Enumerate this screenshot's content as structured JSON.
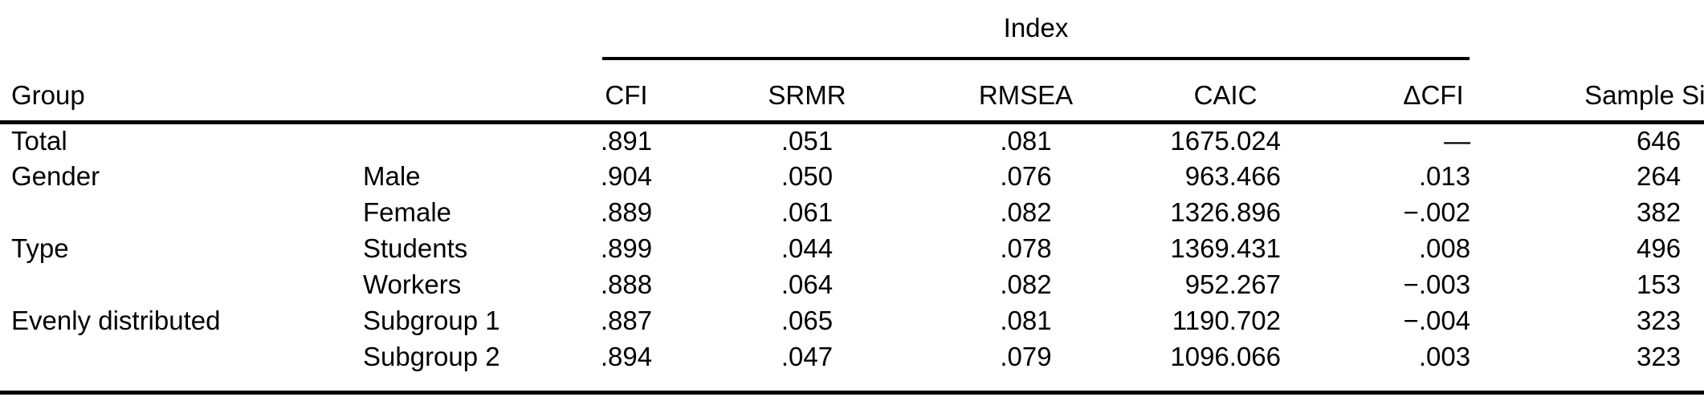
{
  "table": {
    "spanner_label": "Index",
    "columns": {
      "group": "Group",
      "subgroup": "",
      "cfi": "CFI",
      "srmr": "SRMR",
      "rmsea": "RMSEA",
      "caic": "CAIC",
      "dcfi": "ΔCFI",
      "sample": "Sample Size"
    },
    "rows": [
      {
        "group": "Total",
        "subgroup": "",
        "cfi": ".891",
        "srmr": ".051",
        "rmsea": ".081",
        "caic": "1675.024",
        "dcfi": "—",
        "sample": "646"
      },
      {
        "group": "Gender",
        "subgroup": "Male",
        "cfi": ".904",
        "srmr": ".050",
        "rmsea": ".076",
        "caic": "963.466",
        "dcfi": ".013",
        "sample": "264"
      },
      {
        "group": "",
        "subgroup": "Female",
        "cfi": ".889",
        "srmr": ".061",
        "rmsea": ".082",
        "caic": "1326.896",
        "dcfi": "−.002",
        "sample": "382"
      },
      {
        "group": "Type",
        "subgroup": "Students",
        "cfi": ".899",
        "srmr": ".044",
        "rmsea": ".078",
        "caic": "1369.431",
        "dcfi": ".008",
        "sample": "496"
      },
      {
        "group": "",
        "subgroup": "Workers",
        "cfi": ".888",
        "srmr": ".064",
        "rmsea": ".082",
        "caic": "952.267",
        "dcfi": "−.003",
        "sample": "153"
      },
      {
        "group": "Evenly distributed",
        "subgroup": "Subgroup 1",
        "cfi": ".887",
        "srmr": ".065",
        "rmsea": ".081",
        "caic": "1190.702",
        "dcfi": "−.004",
        "sample": "323"
      },
      {
        "group": "",
        "subgroup": "Subgroup 2",
        "cfi": ".894",
        "srmr": ".047",
        "rmsea": ".079",
        "caic": "1096.066",
        "dcfi": ".003",
        "sample": "323"
      }
    ],
    "colors": {
      "text": "#000000",
      "background": "#ffffff",
      "rule": "#000000"
    }
  }
}
